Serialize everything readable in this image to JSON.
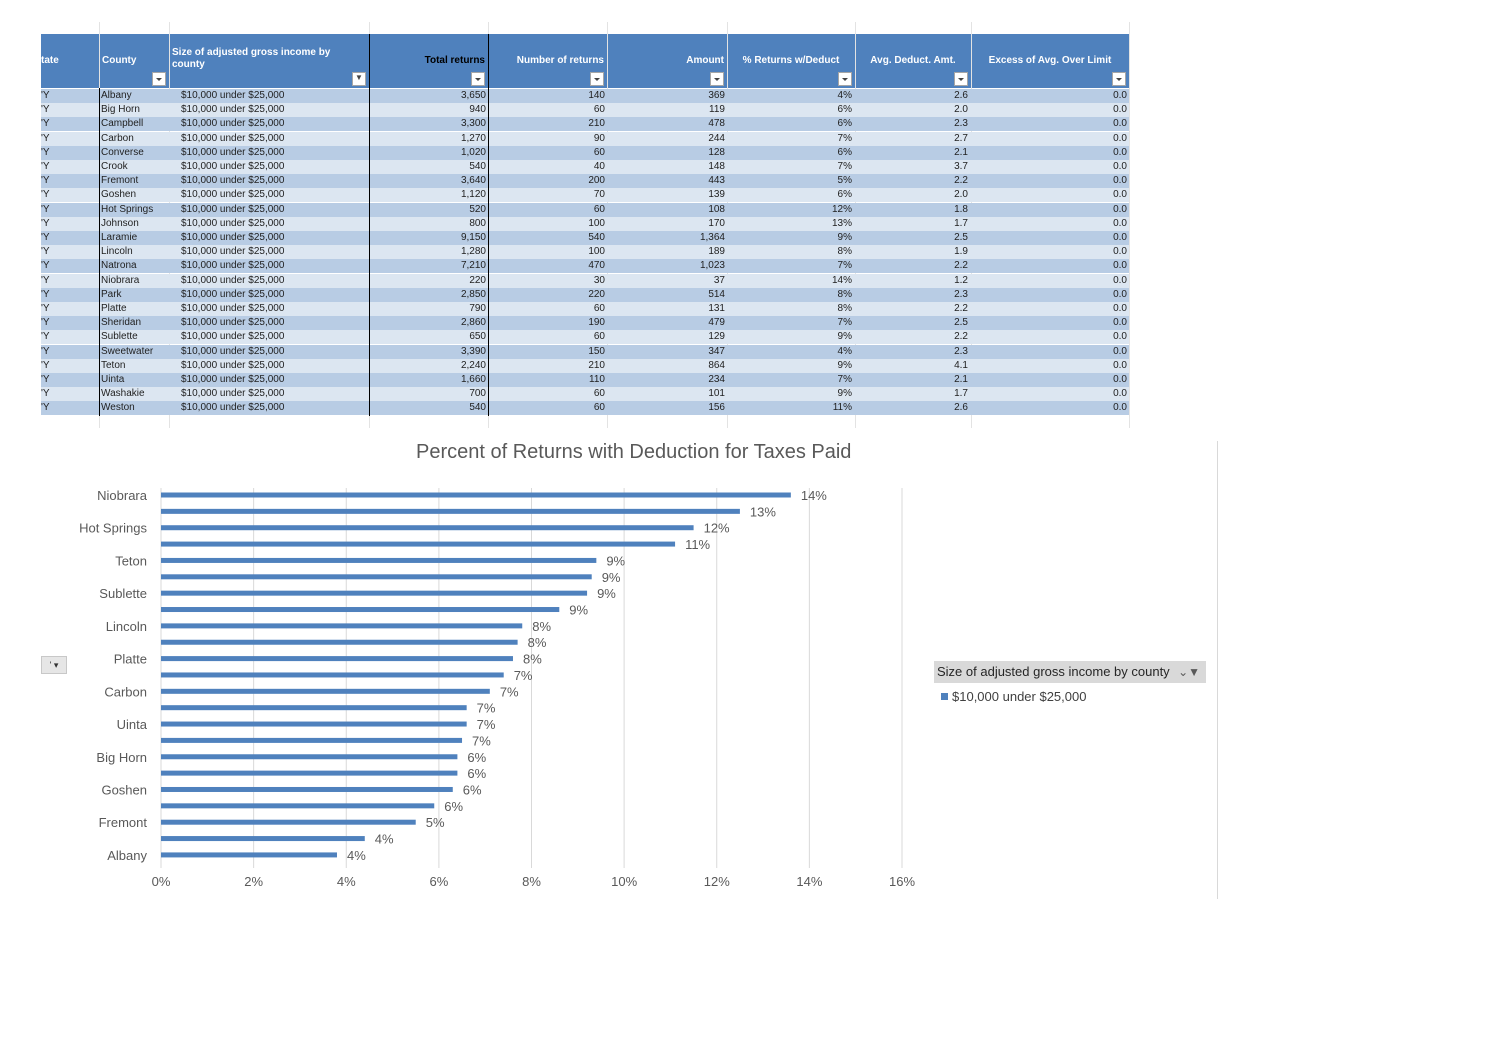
{
  "table": {
    "headers": {
      "state": "tate",
      "county": "County",
      "size": "Size of adjusted gross income by county",
      "total_returns": "Total returns",
      "number_of_returns": "Number of returns",
      "amount": "Amount",
      "pct_returns": "% Returns w/Deduct",
      "avg_deduct": "Avg. Deduct. Amt.",
      "excess": "Excess of Avg. Over Limit"
    },
    "rows": [
      {
        "state": "'Y",
        "county": "Albany",
        "size": "$10,000 under $25,000",
        "total": "3,650",
        "number": "140",
        "amount": "369",
        "pct": "4%",
        "avg": "2.6",
        "excess": "0.0"
      },
      {
        "state": "'Y",
        "county": "Big Horn",
        "size": "$10,000 under $25,000",
        "total": "940",
        "number": "60",
        "amount": "119",
        "pct": "6%",
        "avg": "2.0",
        "excess": "0.0"
      },
      {
        "state": "'Y",
        "county": "Campbell",
        "size": "$10,000 under $25,000",
        "total": "3,300",
        "number": "210",
        "amount": "478",
        "pct": "6%",
        "avg": "2.3",
        "excess": "0.0"
      },
      {
        "state": "'Y",
        "county": "Carbon",
        "size": "$10,000 under $25,000",
        "total": "1,270",
        "number": "90",
        "amount": "244",
        "pct": "7%",
        "avg": "2.7",
        "excess": "0.0"
      },
      {
        "state": "'Y",
        "county": "Converse",
        "size": "$10,000 under $25,000",
        "total": "1,020",
        "number": "60",
        "amount": "128",
        "pct": "6%",
        "avg": "2.1",
        "excess": "0.0"
      },
      {
        "state": "'Y",
        "county": "Crook",
        "size": "$10,000 under $25,000",
        "total": "540",
        "number": "40",
        "amount": "148",
        "pct": "7%",
        "avg": "3.7",
        "excess": "0.0"
      },
      {
        "state": "'Y",
        "county": "Fremont",
        "size": "$10,000 under $25,000",
        "total": "3,640",
        "number": "200",
        "amount": "443",
        "pct": "5%",
        "avg": "2.2",
        "excess": "0.0"
      },
      {
        "state": "'Y",
        "county": "Goshen",
        "size": "$10,000 under $25,000",
        "total": "1,120",
        "number": "70",
        "amount": "139",
        "pct": "6%",
        "avg": "2.0",
        "excess": "0.0"
      },
      {
        "state": "'Y",
        "county": "Hot Springs",
        "size": "$10,000 under $25,000",
        "total": "520",
        "number": "60",
        "amount": "108",
        "pct": "12%",
        "avg": "1.8",
        "excess": "0.0"
      },
      {
        "state": "'Y",
        "county": "Johnson",
        "size": "$10,000 under $25,000",
        "total": "800",
        "number": "100",
        "amount": "170",
        "pct": "13%",
        "avg": "1.7",
        "excess": "0.0"
      },
      {
        "state": "'Y",
        "county": "Laramie",
        "size": "$10,000 under $25,000",
        "total": "9,150",
        "number": "540",
        "amount": "1,364",
        "pct": "9%",
        "avg": "2.5",
        "excess": "0.0"
      },
      {
        "state": "'Y",
        "county": "Lincoln",
        "size": "$10,000 under $25,000",
        "total": "1,280",
        "number": "100",
        "amount": "189",
        "pct": "8%",
        "avg": "1.9",
        "excess": "0.0"
      },
      {
        "state": "'Y",
        "county": "Natrona",
        "size": "$10,000 under $25,000",
        "total": "7,210",
        "number": "470",
        "amount": "1,023",
        "pct": "7%",
        "avg": "2.2",
        "excess": "0.0"
      },
      {
        "state": "'Y",
        "county": "Niobrara",
        "size": "$10,000 under $25,000",
        "total": "220",
        "number": "30",
        "amount": "37",
        "pct": "14%",
        "avg": "1.2",
        "excess": "0.0"
      },
      {
        "state": "'Y",
        "county": "Park",
        "size": "$10,000 under $25,000",
        "total": "2,850",
        "number": "220",
        "amount": "514",
        "pct": "8%",
        "avg": "2.3",
        "excess": "0.0"
      },
      {
        "state": "'Y",
        "county": "Platte",
        "size": "$10,000 under $25,000",
        "total": "790",
        "number": "60",
        "amount": "131",
        "pct": "8%",
        "avg": "2.2",
        "excess": "0.0"
      },
      {
        "state": "'Y",
        "county": "Sheridan",
        "size": "$10,000 under $25,000",
        "total": "2,860",
        "number": "190",
        "amount": "479",
        "pct": "7%",
        "avg": "2.5",
        "excess": "0.0"
      },
      {
        "state": "'Y",
        "county": "Sublette",
        "size": "$10,000 under $25,000",
        "total": "650",
        "number": "60",
        "amount": "129",
        "pct": "9%",
        "avg": "2.2",
        "excess": "0.0"
      },
      {
        "state": "'Y",
        "county": "Sweetwater",
        "size": "$10,000 under $25,000",
        "total": "3,390",
        "number": "150",
        "amount": "347",
        "pct": "4%",
        "avg": "2.3",
        "excess": "0.0"
      },
      {
        "state": "'Y",
        "county": "Teton",
        "size": "$10,000 under $25,000",
        "total": "2,240",
        "number": "210",
        "amount": "864",
        "pct": "9%",
        "avg": "4.1",
        "excess": "0.0"
      },
      {
        "state": "'Y",
        "county": "Uinta",
        "size": "$10,000 under $25,000",
        "total": "1,660",
        "number": "110",
        "amount": "234",
        "pct": "7%",
        "avg": "2.1",
        "excess": "0.0"
      },
      {
        "state": "'Y",
        "county": "Washakie",
        "size": "$10,000 under $25,000",
        "total": "700",
        "number": "60",
        "amount": "101",
        "pct": "9%",
        "avg": "1.7",
        "excess": "0.0"
      },
      {
        "state": "'Y",
        "county": "Weston",
        "size": "$10,000 under $25,000",
        "total": "540",
        "number": "60",
        "amount": "156",
        "pct": "11%",
        "avg": "2.6",
        "excess": "0.0"
      }
    ]
  },
  "legend": {
    "header": "Size of adjusted gross income by county",
    "item": "$10,000 under $25,000",
    "filter_icons": "⌄▼"
  },
  "slicer_button_label": "' ▾",
  "chart_data": {
    "type": "bar",
    "orientation": "horizontal",
    "title": "Percent of Returns with Deduction for Taxes Paid",
    "xlabel": "",
    "ylabel": "",
    "xlim": [
      0,
      16
    ],
    "x_ticks": [
      "0%",
      "2%",
      "4%",
      "6%",
      "8%",
      "10%",
      "12%",
      "14%",
      "16%"
    ],
    "category_labels_shown": [
      "Niobrara",
      "Hot Springs",
      "Teton",
      "Sublette",
      "Lincoln",
      "Platte",
      "Carbon",
      "Uinta",
      "Big Horn",
      "Goshen",
      "Fremont",
      "Albany"
    ],
    "categories": [
      "Niobrara",
      "Johnson",
      "Hot Springs",
      "Weston",
      "Teton",
      "Washakie",
      "Sublette",
      "Laramie",
      "Lincoln",
      "Park",
      "Platte",
      "Natrona",
      "Carbon",
      "Sheridan",
      "Uinta",
      "Crook",
      "Big Horn",
      "Campbell",
      "Goshen",
      "Converse",
      "Fremont",
      "Sweetwater",
      "Albany"
    ],
    "values": [
      13.6,
      12.5,
      11.5,
      11.1,
      9.4,
      9.3,
      9.2,
      8.6,
      7.8,
      7.7,
      7.6,
      7.4,
      7.1,
      6.6,
      6.6,
      6.5,
      6.4,
      6.4,
      6.3,
      5.9,
      5.5,
      4.4,
      3.8
    ],
    "data_labels": [
      "14%",
      "13%",
      "12%",
      "11%",
      "9%",
      "9%",
      "9%",
      "9%",
      "8%",
      "8%",
      "8%",
      "7%",
      "7%",
      "7%",
      "7%",
      "7%",
      "6%",
      "6%",
      "6%",
      "6%",
      "5%",
      "4%",
      "4%"
    ],
    "series": [
      {
        "name": "$10,000 under $25,000",
        "color": "#4f81bd"
      }
    ],
    "grid": true,
    "legend": "right"
  },
  "colors": {
    "header_blue": "#4f81bd",
    "band_dark": "#b8cce4",
    "band_light": "#dce6f1",
    "bar": "#4f81bd"
  }
}
